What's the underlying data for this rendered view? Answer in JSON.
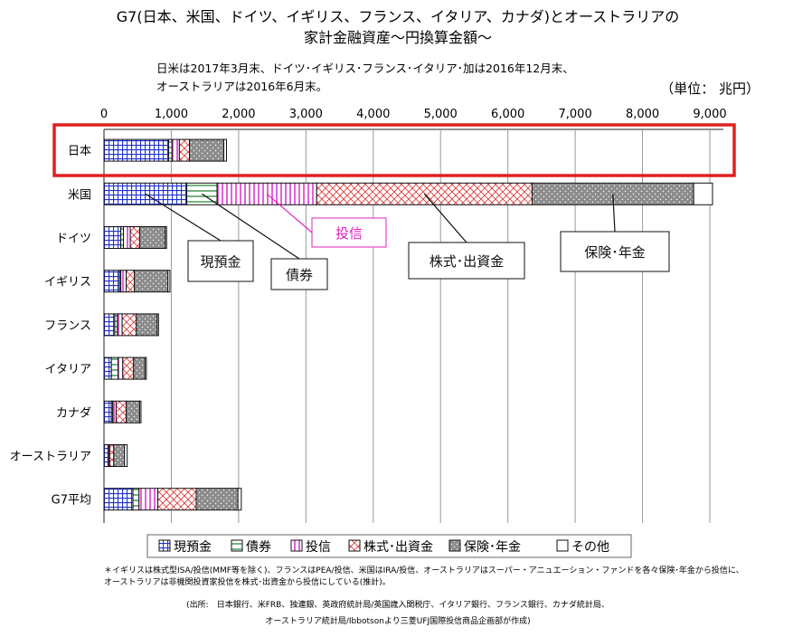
{
  "header": {
    "title_line1": "G7(日本、米国、ドイツ、イギリス、フランス、イタリア、カナダ)とオーストラリアの",
    "title_line2": "家計金融資産～円換算金額～",
    "note_line1": "日米は2017年3月末、ドイツ･イギリス･フランス･イタリア･加は2016年12月末、",
    "note_line2": "オーストラリアは2016年6月末。",
    "unit": "（単位： 兆円）"
  },
  "chart_data": {
    "type": "bar",
    "orientation": "horizontal",
    "stacked": true,
    "x_ticks": [
      "0",
      "1,000",
      "2,000",
      "3,000",
      "4,000",
      "5,000",
      "6,000",
      "7,000",
      "8,000",
      "9,000"
    ],
    "xlim": [
      0,
      9000
    ],
    "grid": true,
    "categories": [
      "日本",
      "米国",
      "ドイツ",
      "イギリス",
      "フランス",
      "イタリア",
      "カナダ",
      "オーストラリア",
      "G7平均"
    ],
    "series": [
      {
        "name": "現預金",
        "values": [
          960,
          1230,
          250,
          230,
          160,
          110,
          110,
          60,
          430
        ]
      },
      {
        "name": "債券",
        "values": [
          50,
          450,
          40,
          20,
          40,
          100,
          20,
          5,
          90
        ]
      },
      {
        "name": "投信",
        "values": [
          110,
          1480,
          100,
          80,
          70,
          70,
          50,
          20,
          280
        ]
      },
      {
        "name": "株式･出資金",
        "values": [
          150,
          3200,
          140,
          120,
          210,
          160,
          150,
          60,
          570
        ]
      },
      {
        "name": "保険･年金",
        "values": [
          510,
          2400,
          380,
          500,
          310,
          170,
          200,
          160,
          620
        ]
      },
      {
        "name": "その他",
        "values": [
          40,
          280,
          20,
          30,
          20,
          20,
          20,
          40,
          50
        ]
      }
    ],
    "highlight_category": "日本",
    "callouts": [
      {
        "text": "現預金",
        "series": "現預金",
        "category": "米国"
      },
      {
        "text": "債券",
        "series": "債券",
        "category": "米国"
      },
      {
        "text": "投信",
        "series": "投信",
        "category": "米国",
        "color": "#e020c0"
      },
      {
        "text": "株式･出資金",
        "series": "株式･出資金",
        "category": "米国"
      },
      {
        "text": "保険･年金",
        "series": "保険･年金",
        "category": "米国"
      }
    ],
    "legend_position": "bottom"
  },
  "footnote": {
    "line1": "＊イギリスは株式型ISA/投信(MMF等を除く)、フランスはPEA/投信、米国はIRA/投信、オーストラリアはスーパー・アニュエーション・ファンドを各々保険･年金から投信に、",
    "line2": "オーストラリアは非機関投資家投信を株式･出資金から投信にしている(推計)。",
    "source1": "(出所:　日本銀行、米FRB、独連銀、英政府統計局/英国歳入関税庁、イタリア銀行、フランス銀行、カナダ統計局、",
    "source2": "オーストラリア統計局/Ibbotsonより三菱UFJ国際投信商品企画部が作成)"
  }
}
